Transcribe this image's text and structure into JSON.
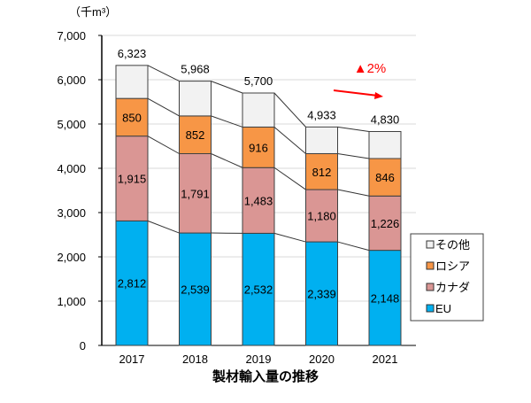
{
  "chart_data": {
    "type": "bar",
    "stacked": true,
    "title": "製材輸入量の推移",
    "unit_label": "（千m³）",
    "categories": [
      "2017",
      "2018",
      "2019",
      "2020",
      "2021"
    ],
    "series": [
      {
        "name": "EU",
        "values": [
          2812,
          2539,
          2532,
          2339,
          2148
        ],
        "color": "#00b0f0"
      },
      {
        "name": "カナダ",
        "values": [
          1915,
          1791,
          1483,
          1180,
          1226
        ],
        "color": "#da9694"
      },
      {
        "name": "ロシア",
        "values": [
          850,
          852,
          916,
          812,
          846
        ],
        "color": "#f79646"
      },
      {
        "name": "その他",
        "values": [
          746,
          786,
          769,
          602,
          610
        ],
        "color": "#f2f2f2"
      }
    ],
    "totals": [
      6323,
      5968,
      5700,
      4933,
      4830
    ],
    "total_labels": [
      "6,323",
      "5,968",
      "5,700",
      "4,933",
      "4,830"
    ],
    "segment_labels": {
      "EU": [
        "2,812",
        "2,539",
        "2,532",
        "2,339",
        "2,148"
      ],
      "カナダ": [
        "1,915",
        "1,791",
        "1,483",
        "1,180",
        "1,226"
      ],
      "ロシア": [
        "850",
        "852",
        "916",
        "812",
        "846"
      ]
    },
    "ylim": [
      0,
      7000
    ],
    "yticks": [
      0,
      1000,
      2000,
      3000,
      4000,
      5000,
      6000,
      7000
    ],
    "ytick_labels": [
      "0",
      "1,000",
      "2,000",
      "3,000",
      "4,000",
      "5,000",
      "6,000",
      "7,000"
    ],
    "grid": true,
    "legend_position": "right",
    "legend_order": [
      "その他",
      "ロシア",
      "カナダ",
      "EU"
    ],
    "annotation": {
      "text": "▲2%",
      "color": "#ff0000"
    }
  }
}
